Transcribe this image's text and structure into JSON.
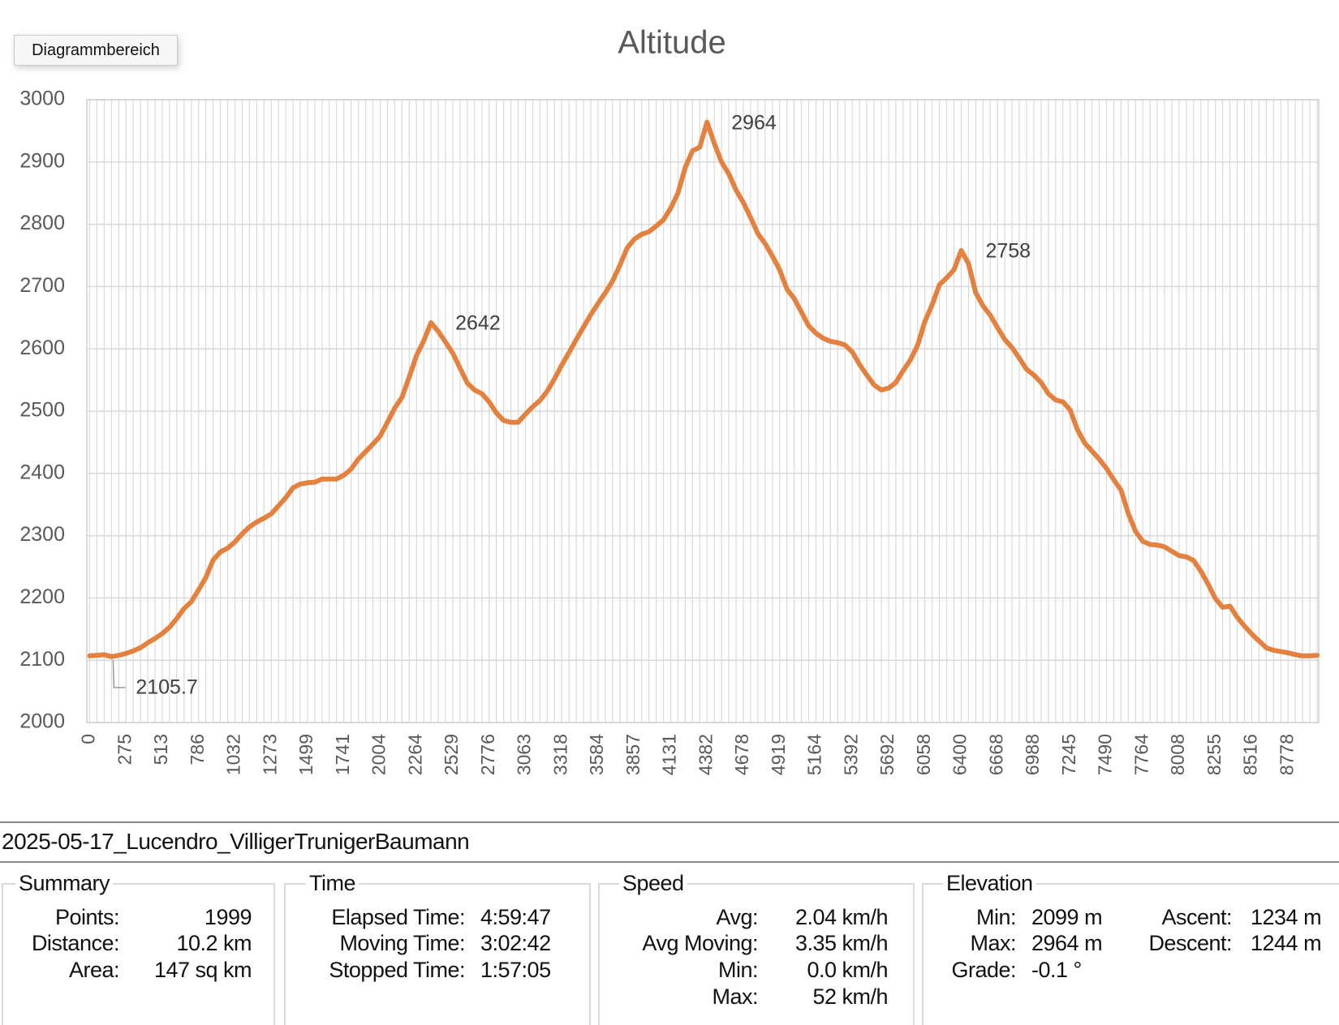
{
  "tooltip": "Diagrammbereich",
  "chart_data": {
    "type": "line",
    "title": "Altitude",
    "categories": [
      "0",
      null,
      null,
      null,
      null,
      "275",
      null,
      null,
      null,
      null,
      "513",
      null,
      null,
      null,
      null,
      "786",
      null,
      null,
      null,
      null,
      "1032",
      null,
      null,
      null,
      null,
      "1273",
      null,
      null,
      null,
      null,
      "1499",
      null,
      null,
      null,
      null,
      "1741",
      null,
      null,
      null,
      null,
      "2004",
      null,
      null,
      null,
      null,
      "2264",
      null,
      null,
      null,
      null,
      "2529",
      null,
      null,
      null,
      null,
      "2776",
      null,
      null,
      null,
      null,
      "3063",
      null,
      null,
      null,
      null,
      "3318",
      null,
      null,
      null,
      null,
      "3584",
      null,
      null,
      null,
      null,
      "3857",
      null,
      null,
      null,
      null,
      "4131",
      null,
      null,
      null,
      null,
      "4382",
      null,
      null,
      null,
      null,
      "4678",
      null,
      null,
      null,
      null,
      "4919",
      null,
      null,
      null,
      null,
      "5164",
      null,
      null,
      null,
      null,
      "5392",
      null,
      null,
      null,
      null,
      "5692",
      null,
      null,
      null,
      null,
      "6058",
      null,
      null,
      null,
      null,
      "6400",
      null,
      null,
      null,
      null,
      "6668",
      null,
      null,
      null,
      null,
      "6988",
      null,
      null,
      null,
      null,
      "7245",
      null,
      null,
      null,
      null,
      "7490",
      null,
      null,
      null,
      null,
      "7764",
      null,
      null,
      null,
      null,
      "8008",
      null,
      null,
      null,
      null,
      "8255",
      null,
      null,
      null,
      null,
      "8516",
      null,
      null,
      null,
      null,
      "8778",
      null,
      null,
      null,
      null
    ],
    "series": [
      {
        "name": "Altitude",
        "color": "#e5813f",
        "values": [
          2107,
          2108,
          2109,
          2105.7,
          2108,
          2111,
          2115,
          2120,
          2128,
          2135,
          2143,
          2153,
          2167,
          2183,
          2194,
          2213,
          2233,
          2261,
          2274,
          2280,
          2290,
          2303,
          2314,
          2322,
          2328,
          2335,
          2348,
          2361,
          2377,
          2383,
          2385,
          2386,
          2391,
          2391,
          2391,
          2397,
          2407,
          2423,
          2435,
          2447,
          2460,
          2482,
          2505,
          2522,
          2555,
          2589,
          2613,
          2642,
          2628,
          2611,
          2593,
          2569,
          2545,
          2534,
          2528,
          2515,
          2497,
          2485,
          2482,
          2482,
          2495,
          2507,
          2517,
          2532,
          2552,
          2574,
          2594,
          2615,
          2635,
          2655,
          2673,
          2690,
          2709,
          2734,
          2762,
          2776,
          2784,
          2788,
          2797,
          2807,
          2826,
          2850,
          2891,
          2918,
          2924,
          2964,
          2930,
          2900,
          2881,
          2855,
          2835,
          2811,
          2785,
          2769,
          2749,
          2727,
          2696,
          2681,
          2659,
          2637,
          2625,
          2617,
          2612,
          2610,
          2606,
          2595,
          2575,
          2558,
          2542,
          2534,
          2537,
          2546,
          2565,
          2582,
          2606,
          2644,
          2671,
          2703,
          2714,
          2727,
          2758,
          2737,
          2690,
          2669,
          2654,
          2634,
          2615,
          2602,
          2585,
          2567,
          2558,
          2546,
          2528,
          2518,
          2515,
          2502,
          2470,
          2449,
          2436,
          2423,
          2408,
          2390,
          2373,
          2336,
          2307,
          2291,
          2286,
          2285,
          2282,
          2275,
          2268,
          2266,
          2260,
          2243,
          2222,
          2199,
          2185,
          2187,
          2169,
          2155,
          2142,
          2131,
          2120,
          2116,
          2114,
          2112,
          2109,
          2107,
          2107,
          2108
        ]
      }
    ],
    "data_labels": [
      3,
      47,
      85,
      120
    ],
    "ylim": [
      2000,
      3000
    ],
    "yticks": [
      2000,
      2100,
      2200,
      2300,
      2400,
      2500,
      2600,
      2700,
      2800,
      2900,
      3000
    ],
    "grid": true
  },
  "panel": {
    "file": "2025-05-17_Lucendro_VilligerTrunigerBaumann",
    "groups": [
      {
        "title": "Summary",
        "rows": [
          [
            "Points:",
            "1999"
          ],
          [
            "Distance:",
            "10.2 km"
          ],
          [
            "Area:",
            "147 sq km"
          ]
        ]
      },
      {
        "title": "Time",
        "rows": [
          [
            "Elapsed Time:",
            "4:59:47"
          ],
          [
            "Moving Time:",
            "3:02:42"
          ],
          [
            "Stopped Time:",
            "1:57:05"
          ]
        ]
      },
      {
        "title": "Speed",
        "rows": [
          [
            "Avg:",
            "2.04 km/h"
          ],
          [
            "Avg Moving:",
            "3.35 km/h"
          ],
          [
            "Min:",
            "0.0 km/h"
          ],
          [
            "Max:",
            "52 km/h"
          ]
        ]
      },
      {
        "title": "Elevation",
        "rows": [
          [
            "Min:",
            "2099 m",
            "Ascent:",
            "1234 m"
          ],
          [
            "Max:",
            "2964 m",
            "Descent:",
            "1244 m"
          ],
          [
            "Grade:",
            "-0.1 °"
          ]
        ]
      }
    ]
  }
}
